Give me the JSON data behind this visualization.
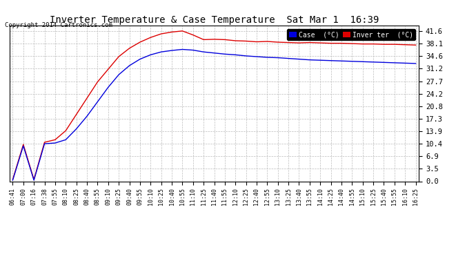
{
  "title": "Inverter Temperature & Case Temperature  Sat Mar 1  16:39",
  "copyright": "Copyright 2014 Cartronics.com",
  "bg_color": "#ffffff",
  "plot_bg_color": "#ffffff",
  "grid_color": "#bbbbbb",
  "case_color": "#0000dd",
  "inverter_color": "#dd0000",
  "legend_case_label": "Case  (°C)",
  "legend_inverter_label": "Inver ter  (°C)",
  "yticks": [
    0.0,
    3.5,
    6.9,
    10.4,
    13.9,
    17.3,
    20.8,
    24.2,
    27.7,
    31.2,
    34.6,
    38.1,
    41.6
  ],
  "ylim": [
    0.0,
    43.0
  ],
  "x_labels": [
    "06:41",
    "07:00",
    "07:16",
    "07:38",
    "07:55",
    "08:10",
    "08:25",
    "08:40",
    "08:55",
    "09:10",
    "09:25",
    "09:40",
    "09:55",
    "10:10",
    "10:25",
    "10:40",
    "10:55",
    "11:10",
    "11:25",
    "11:40",
    "11:55",
    "12:10",
    "12:25",
    "12:40",
    "12:55",
    "13:10",
    "13:25",
    "13:40",
    "13:55",
    "14:10",
    "14:25",
    "14:40",
    "14:55",
    "15:10",
    "15:25",
    "15:40",
    "15:55",
    "16:10",
    "16:25"
  ],
  "inverter_y": [
    0.5,
    10.2,
    0.5,
    10.8,
    11.5,
    14.0,
    18.5,
    23.0,
    27.5,
    31.0,
    34.5,
    36.8,
    38.5,
    39.8,
    40.8,
    41.3,
    41.6,
    40.5,
    39.2,
    39.3,
    39.2,
    38.9,
    38.8,
    38.6,
    38.7,
    38.5,
    38.4,
    38.3,
    38.4,
    38.3,
    38.2,
    38.2,
    38.1,
    38.0,
    38.0,
    37.9,
    37.9,
    37.8,
    37.7
  ],
  "case_y": [
    0.3,
    9.8,
    0.3,
    10.4,
    10.6,
    11.5,
    14.5,
    18.0,
    22.0,
    26.0,
    29.5,
    32.0,
    33.8,
    35.0,
    35.8,
    36.2,
    36.5,
    36.3,
    35.8,
    35.5,
    35.2,
    35.0,
    34.7,
    34.5,
    34.3,
    34.2,
    34.0,
    33.8,
    33.6,
    33.5,
    33.4,
    33.3,
    33.2,
    33.1,
    33.0,
    32.9,
    32.8,
    32.7,
    32.6
  ]
}
